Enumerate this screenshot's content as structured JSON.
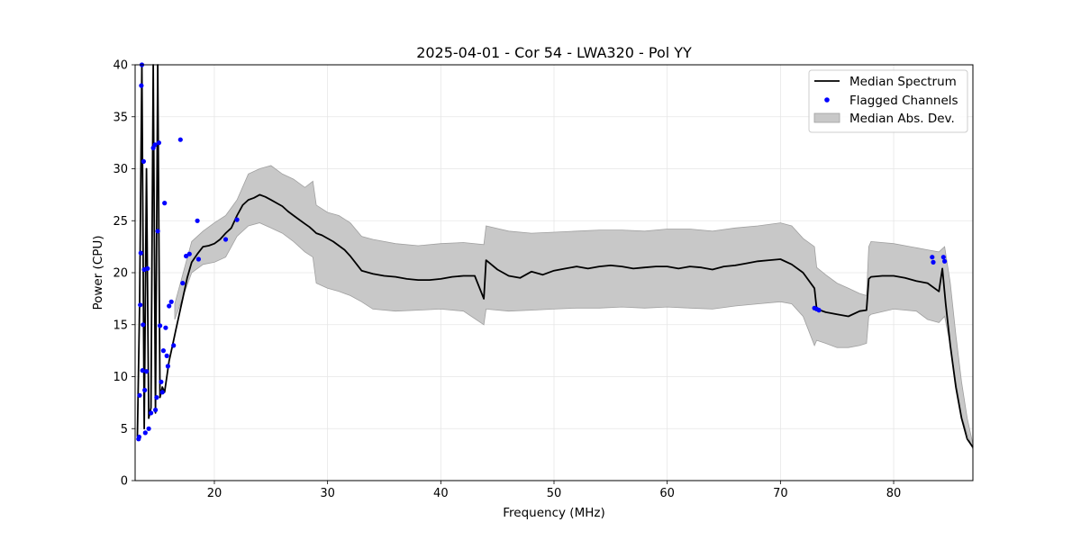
{
  "chart_data": {
    "type": "line",
    "title": "2025-04-01 - Cor 54 - LWA320 - Pol YY",
    "xlabel": "Frequency (MHz)",
    "ylabel": "Power (CPU)",
    "xlim": [
      13.0,
      87.0
    ],
    "ylim": [
      0,
      40
    ],
    "x_ticks": [
      20,
      30,
      40,
      50,
      60,
      70,
      80
    ],
    "y_ticks": [
      0,
      5,
      10,
      15,
      20,
      25,
      30,
      35,
      40
    ],
    "grid": true,
    "legend_position": "top-right",
    "colors": {
      "median": "#000000",
      "flagged": "#0000ff",
      "mad_fill": "#c8c8c8",
      "mad_edge": "#a0a0a0"
    },
    "series": [
      {
        "name": "Median Spectrum",
        "kind": "line",
        "x": [
          13.2,
          13.4,
          13.6,
          13.8,
          14.0,
          14.2,
          14.4,
          14.6,
          14.8,
          15.0,
          15.2,
          15.4,
          15.6,
          15.8,
          16.0,
          16.3,
          16.6,
          16.9,
          17.2,
          17.6,
          18.0,
          18.5,
          19.0,
          19.5,
          20.0,
          20.5,
          21.0,
          21.5,
          22.0,
          22.5,
          23.0,
          23.5,
          24.0,
          24.5,
          25.0,
          25.5,
          26.0,
          26.5,
          27.0,
          27.5,
          28.0,
          28.4,
          28.7,
          29.0,
          29.5,
          30.0,
          30.5,
          31.0,
          31.5,
          32.0,
          32.5,
          33.0,
          34.0,
          35.0,
          36.0,
          37.0,
          38.0,
          39.0,
          40.0,
          41.0,
          42.0,
          43.0,
          43.8,
          44.0,
          45.0,
          46.0,
          47.0,
          48.0,
          49.0,
          50.0,
          51.0,
          52.0,
          53.0,
          54.0,
          55.0,
          56.0,
          57.0,
          58.0,
          59.0,
          60.0,
          61.0,
          62.0,
          63.0,
          64.0,
          65.0,
          66.0,
          67.0,
          68.0,
          69.0,
          70.0,
          71.0,
          72.0,
          73.0,
          73.2,
          73.5,
          74.0,
          75.0,
          76.0,
          77.0,
          77.6,
          77.8,
          78.0,
          79.0,
          80.0,
          81.0,
          82.0,
          83.0,
          84.0,
          84.3,
          84.6,
          85.0,
          85.5,
          86.0,
          86.5,
          87.0
        ],
        "y": [
          4.2,
          17.0,
          40.0,
          5.0,
          30.0,
          6.0,
          7.0,
          40.0,
          6.5,
          40.0,
          8.0,
          9.0,
          8.5,
          10.0,
          11.5,
          13.0,
          14.5,
          16.0,
          17.5,
          19.5,
          21.0,
          21.8,
          22.5,
          22.6,
          22.8,
          23.2,
          23.8,
          24.3,
          25.5,
          26.5,
          27.0,
          27.2,
          27.5,
          27.3,
          27.0,
          26.7,
          26.4,
          25.9,
          25.5,
          25.1,
          24.7,
          24.4,
          24.1,
          23.8,
          23.6,
          23.3,
          23.0,
          22.6,
          22.2,
          21.6,
          20.9,
          20.2,
          19.9,
          19.7,
          19.6,
          19.4,
          19.3,
          19.3,
          19.4,
          19.6,
          19.7,
          19.7,
          17.5,
          21.2,
          20.3,
          19.7,
          19.5,
          20.1,
          19.8,
          20.2,
          20.4,
          20.6,
          20.4,
          20.6,
          20.7,
          20.6,
          20.4,
          20.5,
          20.6,
          20.6,
          20.4,
          20.6,
          20.5,
          20.3,
          20.6,
          20.7,
          20.9,
          21.1,
          21.2,
          21.3,
          20.8,
          20.0,
          18.5,
          16.5,
          16.4,
          16.2,
          16.0,
          15.8,
          16.3,
          16.4,
          19.4,
          19.6,
          19.7,
          19.7,
          19.5,
          19.2,
          19.0,
          18.2,
          20.4,
          17.0,
          13.0,
          9.0,
          6.0,
          4.0,
          3.2
        ]
      },
      {
        "name": "Flagged Channels",
        "kind": "scatter",
        "x": [
          13.3,
          13.35,
          13.4,
          13.45,
          13.5,
          13.55,
          13.6,
          13.65,
          13.7,
          13.75,
          13.8,
          13.85,
          13.9,
          14.0,
          14.1,
          14.2,
          14.4,
          14.6,
          14.75,
          14.8,
          14.9,
          15.0,
          15.1,
          15.2,
          15.3,
          15.4,
          15.5,
          15.6,
          15.7,
          15.8,
          15.9,
          16.0,
          16.2,
          16.4,
          17.0,
          17.2,
          17.5,
          17.8,
          18.5,
          18.6,
          21.0,
          22.0,
          73.0,
          73.2,
          73.4,
          83.4,
          83.5,
          84.4,
          84.5
        ],
        "y": [
          4.0,
          4.2,
          8.2,
          16.9,
          21.9,
          38.0,
          40.0,
          10.6,
          15.0,
          30.7,
          20.3,
          8.7,
          4.6,
          10.5,
          20.4,
          5.0,
          6.5,
          32.0,
          32.3,
          6.8,
          8.0,
          24.0,
          32.5,
          14.9,
          9.5,
          8.5,
          12.5,
          26.7,
          14.7,
          12.0,
          11.0,
          16.8,
          17.2,
          13.0,
          32.8,
          19.0,
          21.6,
          21.8,
          25.0,
          21.3,
          23.2,
          25.1,
          16.6,
          16.5,
          16.4,
          21.5,
          21.0,
          21.5,
          21.1
        ]
      },
      {
        "name": "Median Abs. Dev.",
        "kind": "area",
        "x": [
          16.5,
          18.0,
          19.0,
          20.0,
          21.0,
          22.0,
          23.0,
          24.0,
          25.0,
          26.0,
          27.0,
          28.0,
          28.7,
          29.0,
          30.0,
          31.0,
          32.0,
          33.0,
          34.0,
          36.0,
          38.0,
          40.0,
          42.0,
          43.8,
          44.0,
          46.0,
          48.0,
          50.0,
          52.0,
          54.0,
          56.0,
          58.0,
          60.0,
          62.0,
          64.0,
          66.0,
          68.0,
          70.0,
          71.0,
          72.0,
          73.0,
          73.2,
          74.0,
          75.0,
          76.0,
          77.0,
          77.6,
          77.8,
          78.0,
          80.0,
          82.0,
          83.0,
          84.0,
          84.5,
          85.0,
          85.5,
          86.0,
          86.5,
          87.0
        ],
        "upper": [
          17.0,
          23.0,
          24.0,
          24.8,
          25.5,
          27.0,
          29.5,
          30.0,
          30.3,
          29.5,
          29.0,
          28.2,
          28.8,
          26.5,
          25.8,
          25.5,
          24.8,
          23.5,
          23.2,
          22.8,
          22.6,
          22.8,
          22.9,
          22.7,
          24.5,
          24.0,
          23.8,
          23.9,
          24.0,
          24.1,
          24.1,
          24.0,
          24.2,
          24.2,
          24.0,
          24.3,
          24.5,
          24.8,
          24.5,
          23.3,
          22.5,
          20.5,
          19.8,
          19.0,
          18.5,
          18.0,
          17.8,
          22.5,
          23.0,
          22.8,
          22.4,
          22.2,
          22.0,
          22.5,
          19.0,
          14.0,
          9.5,
          6.0,
          3.5
        ],
        "lower": [
          15.5,
          20.0,
          20.8,
          21.0,
          21.5,
          23.5,
          24.5,
          24.8,
          24.3,
          23.8,
          23.0,
          22.0,
          21.5,
          19.0,
          18.5,
          18.2,
          17.8,
          17.2,
          16.5,
          16.3,
          16.4,
          16.5,
          16.3,
          15.0,
          16.5,
          16.3,
          16.4,
          16.5,
          16.6,
          16.6,
          16.7,
          16.6,
          16.7,
          16.6,
          16.5,
          16.8,
          17.0,
          17.2,
          17.0,
          15.8,
          13.0,
          13.5,
          13.2,
          12.8,
          12.8,
          13.0,
          13.2,
          15.8,
          16.0,
          16.5,
          16.3,
          15.5,
          15.2,
          15.8,
          13.0,
          9.5,
          6.2,
          4.5,
          3.0
        ]
      }
    ]
  }
}
